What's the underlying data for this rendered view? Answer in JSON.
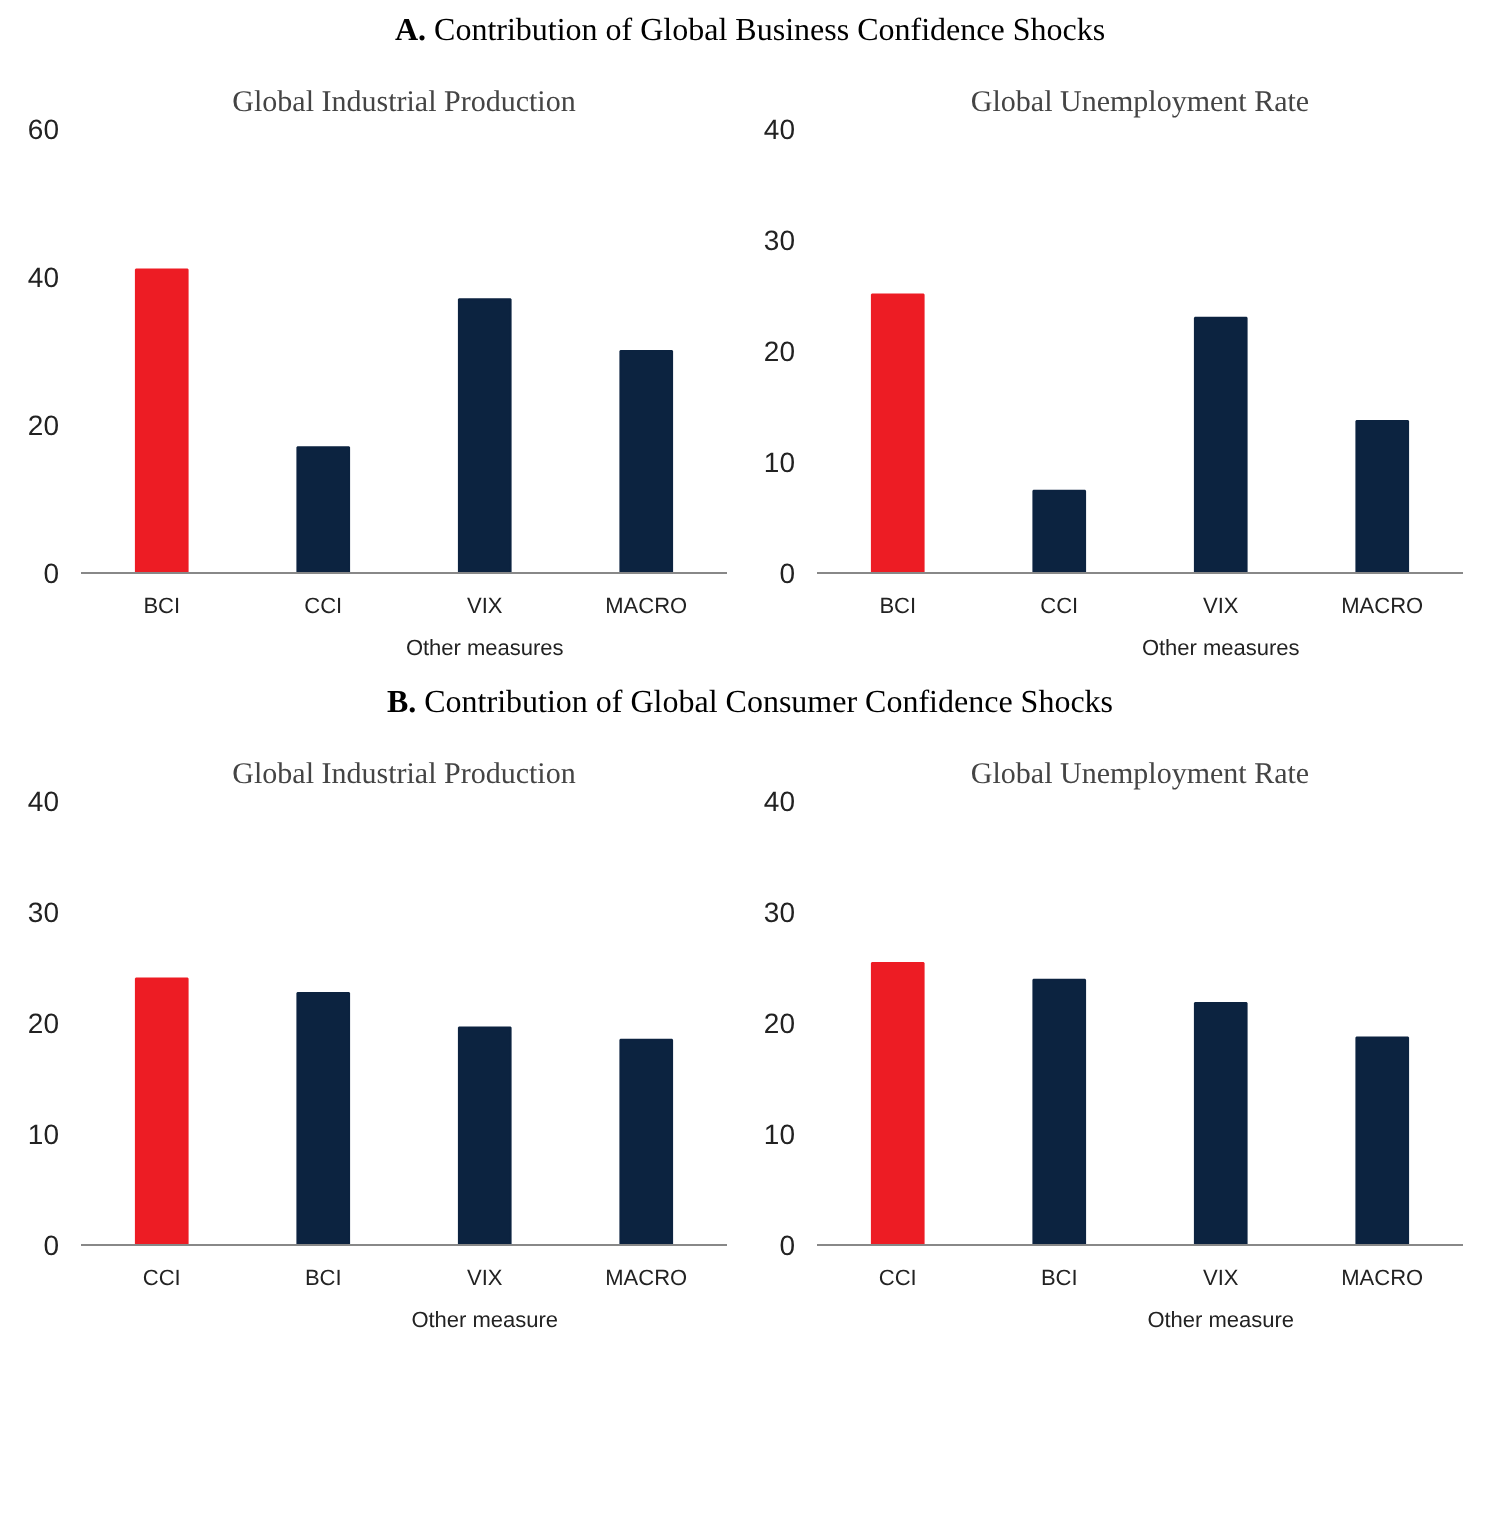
{
  "chart_data": [
    {
      "type": "bar",
      "title": "A. Contribution of Global Business Confidence Shocks",
      "subtitle": "Global Industrial Production",
      "categories": [
        "BCI",
        "CCI",
        "VIX",
        "MACRO"
      ],
      "values": [
        41,
        17,
        37,
        30
      ],
      "colors": [
        "#ed1c24",
        "#0c2340",
        "#0c2340",
        "#0c2340"
      ],
      "ylim": [
        0,
        60
      ],
      "yticks": [
        0,
        20,
        40,
        60
      ],
      "annotations": [
        "Other measures"
      ]
    },
    {
      "type": "bar",
      "subtitle": "Global Unemployment Rate",
      "categories": [
        "BCI",
        "CCI",
        "VIX",
        "MACRO"
      ],
      "values": [
        25.1,
        7.4,
        23,
        13.7
      ],
      "colors": [
        "#ed1c24",
        "#0c2340",
        "#0c2340",
        "#0c2340"
      ],
      "ylim": [
        0,
        40
      ],
      "yticks": [
        0,
        10,
        20,
        30,
        40
      ],
      "annotations": [
        "Other measures"
      ]
    },
    {
      "type": "bar",
      "title": "B. Contribution of Global Consumer Confidence Shocks",
      "subtitle": "Global Industrial Production",
      "categories": [
        "CCI",
        "BCI",
        "VIX",
        "MACRO"
      ],
      "values": [
        24,
        22.7,
        19.6,
        18.5
      ],
      "colors": [
        "#ed1c24",
        "#0c2340",
        "#0c2340",
        "#0c2340"
      ],
      "ylim": [
        0,
        40
      ],
      "yticks": [
        0,
        10,
        20,
        30,
        40
      ],
      "annotations": [
        "Other measure"
      ]
    },
    {
      "type": "bar",
      "subtitle": "Global Unemployment Rate",
      "categories": [
        "CCI",
        "BCI",
        "VIX",
        "MACRO"
      ],
      "values": [
        25.4,
        23.9,
        21.8,
        18.7
      ],
      "colors": [
        "#ed1c24",
        "#0c2340",
        "#0c2340",
        "#0c2340"
      ],
      "ylim": [
        0,
        40
      ],
      "yticks": [
        0,
        10,
        20,
        30,
        40
      ],
      "annotations": [
        "Other measure"
      ]
    }
  ]
}
